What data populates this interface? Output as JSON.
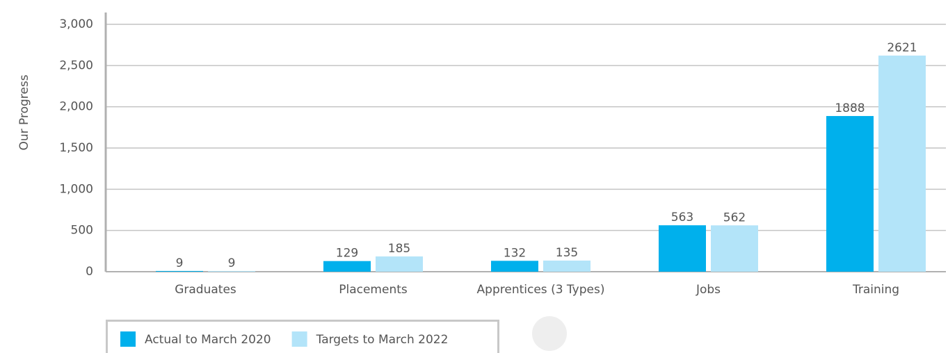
{
  "chart_data": {
    "type": "bar",
    "y_label": "Our Progress",
    "categories": [
      "Graduates",
      "Placements",
      "Apprentices (3 Types)",
      "Jobs",
      "Training"
    ],
    "series": [
      {
        "name": "Actual to March 2020",
        "color": "#00b0ec",
        "values": [
          9,
          129,
          132,
          563,
          1888
        ]
      },
      {
        "name": "Targets to March 2022",
        "color": "#b3e4f9",
        "values": [
          9,
          185,
          135,
          562,
          2621
        ]
      }
    ],
    "ylim": [
      0,
      3000
    ],
    "yticks": [
      0,
      500,
      {
        "value": 1000,
        "label": "1,000"
      },
      {
        "value": 1500,
        "label": "1,500"
      },
      {
        "value": 2000,
        "label": "2,000"
      },
      {
        "value": 2500,
        "label": "2,500"
      },
      {
        "value": 3000,
        "label": "3,000"
      }
    ],
    "grid": true,
    "legend": "bottom-left"
  }
}
